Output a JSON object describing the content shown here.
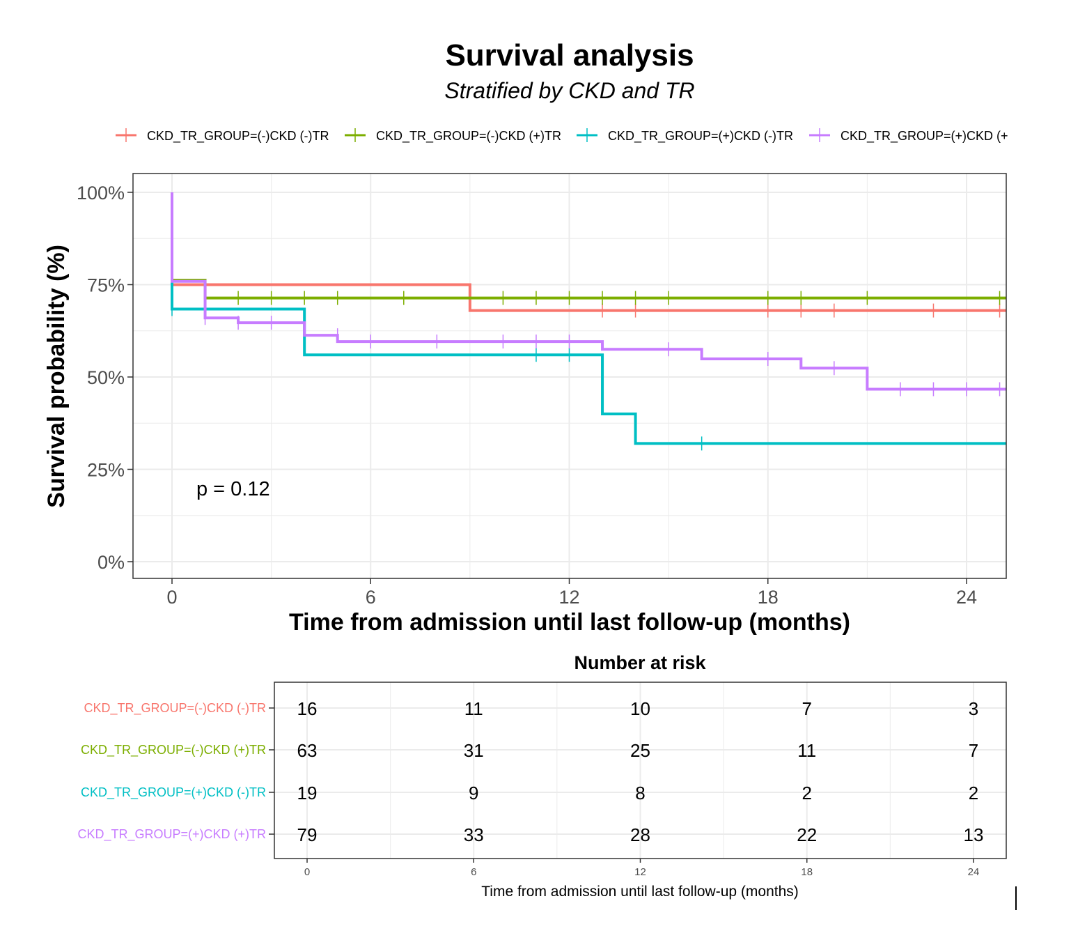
{
  "chart_data": {
    "type": "line",
    "subtype": "kaplan-meier-step",
    "title": "Survival analysis",
    "subtitle": "Stratified by CKD and TR",
    "xlabel": "Time from admission until last follow-up (months)",
    "ylabel": "Survival probability (%)",
    "xlim": [
      0,
      25
    ],
    "ylim": [
      0,
      100
    ],
    "x_ticks": [
      0,
      6,
      12,
      18,
      24
    ],
    "x_tick_labels": [
      "0",
      "6",
      "12",
      "18",
      "24"
    ],
    "y_ticks": [
      0,
      25,
      50,
      75,
      100
    ],
    "y_tick_labels": [
      "0%",
      "25%",
      "50%",
      "75%",
      "100%"
    ],
    "grid": true,
    "legend_position": "top",
    "annotation": "p = 0.12",
    "series": [
      {
        "name": "CKD_TR_GROUP=(-)CKD (-)TR",
        "legend_label": "CKD_TR_GROUP=(-)CKD (-)TR",
        "color": "#F8766D",
        "steps": [
          [
            0,
            100
          ],
          [
            0,
            75
          ],
          [
            9,
            68
          ]
        ],
        "censors": [
          [
            13,
            68
          ],
          [
            14,
            68
          ],
          [
            18,
            68
          ],
          [
            19,
            68
          ],
          [
            20,
            68
          ],
          [
            23,
            68
          ],
          [
            25,
            68
          ]
        ]
      },
      {
        "name": "CKD_TR_GROUP=(-)CKD (+)TR",
        "legend_label": "CKD_TR_GROUP=(-)CKD (+)TR",
        "color": "#7CAE00",
        "steps": [
          [
            0,
            100
          ],
          [
            0,
            76.2
          ],
          [
            1,
            71.4
          ]
        ],
        "censors": [
          [
            2,
            71.4
          ],
          [
            3,
            71.4
          ],
          [
            4,
            71.4
          ],
          [
            5,
            71.4
          ],
          [
            7,
            71.4
          ],
          [
            10,
            71.4
          ],
          [
            11,
            71.4
          ],
          [
            12,
            71.4
          ],
          [
            13,
            71.4
          ],
          [
            14,
            71.4
          ],
          [
            15,
            71.4
          ],
          [
            18,
            71.4
          ],
          [
            19,
            71.4
          ],
          [
            21,
            71.4
          ],
          [
            25,
            71.4
          ]
        ]
      },
      {
        "name": "CKD_TR_GROUP=(+)CKD (-)TR",
        "legend_label": "CKD_TR_GROUP=(+)CKD (-)TR",
        "color": "#00BFC4",
        "steps": [
          [
            0,
            100
          ],
          [
            0,
            68.4
          ],
          [
            4,
            56
          ],
          [
            13,
            40
          ],
          [
            14,
            32
          ]
        ],
        "censors": [
          [
            0,
            68.4
          ],
          [
            11,
            56
          ],
          [
            12,
            56
          ],
          [
            16,
            32
          ]
        ]
      },
      {
        "name": "CKD_TR_GROUP=(+)CKD (+)TR",
        "legend_label": "CKD_TR_GROUP=(+)CKD (+",
        "color": "#C77CFF",
        "steps": [
          [
            0,
            100
          ],
          [
            0,
            75.9
          ],
          [
            1,
            66
          ],
          [
            2,
            64.7
          ],
          [
            4,
            61.3
          ],
          [
            5,
            59.6
          ],
          [
            13,
            57.5
          ],
          [
            16,
            54.9
          ],
          [
            19,
            52.4
          ],
          [
            21,
            46.7
          ]
        ],
        "censors": [
          [
            1,
            66
          ],
          [
            2,
            64.7
          ],
          [
            3,
            64.7
          ],
          [
            5,
            61.3
          ],
          [
            6,
            59.6
          ],
          [
            8,
            59.6
          ],
          [
            10,
            59.6
          ],
          [
            11,
            59.6
          ],
          [
            12,
            59.6
          ],
          [
            15,
            57.5
          ],
          [
            18,
            54.9
          ],
          [
            20,
            52.4
          ],
          [
            22,
            46.7
          ],
          [
            23,
            46.7
          ],
          [
            24,
            46.7
          ],
          [
            25,
            46.7
          ]
        ]
      }
    ],
    "risk_table": {
      "title": "Number at risk",
      "xlabel": "Time from admission until last follow-up (months)",
      "times": [
        0,
        6,
        12,
        18,
        24
      ],
      "time_labels": [
        "0",
        "6",
        "12",
        "18",
        "24"
      ],
      "rows": [
        {
          "label": "CKD_TR_GROUP=(-)CKD (-)TR",
          "color": "#F8766D",
          "values": [
            "16",
            "11",
            "10",
            "7",
            "3"
          ]
        },
        {
          "label": "CKD_TR_GROUP=(-)CKD (+)TR",
          "color": "#7CAE00",
          "values": [
            "63",
            "31",
            "25",
            "11",
            "7"
          ]
        },
        {
          "label": "CKD_TR_GROUP=(+)CKD (-)TR",
          "color": "#00BFC4",
          "values": [
            "19",
            "9",
            "8",
            "2",
            "2"
          ]
        },
        {
          "label": "CKD_TR_GROUP=(+)CKD (+)TR",
          "color": "#C77CFF",
          "values": [
            "79",
            "33",
            "28",
            "22",
            "13"
          ]
        }
      ]
    }
  }
}
